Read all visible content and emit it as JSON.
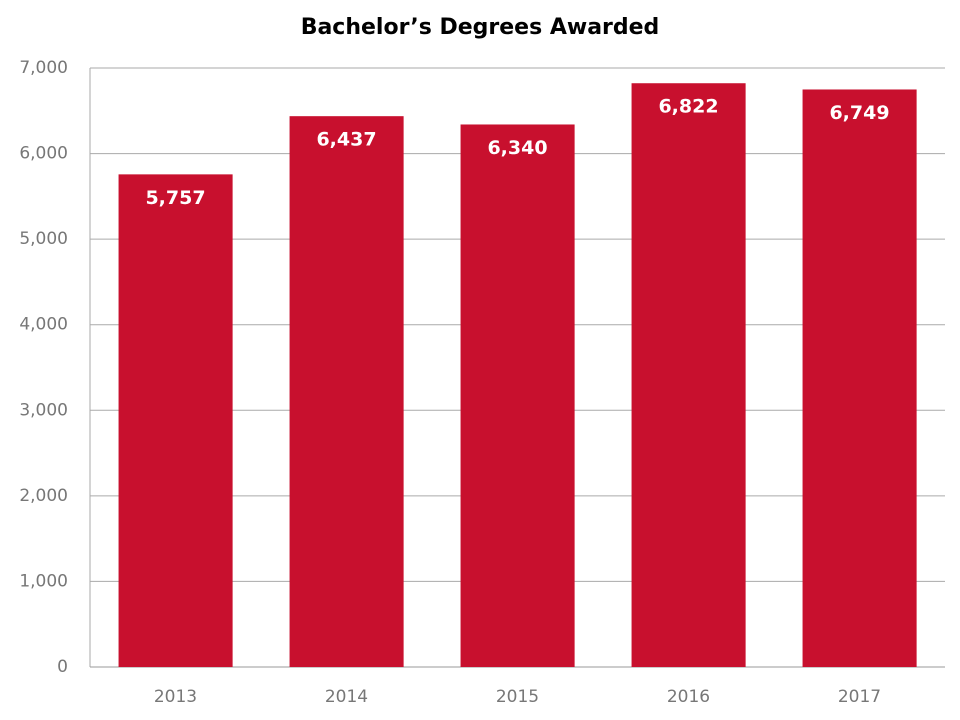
{
  "chart_data": {
    "type": "bar",
    "title": "Bachelor’s Degrees Awarded",
    "categories": [
      "2013",
      "2014",
      "2015",
      "2016",
      "2017"
    ],
    "values": [
      5757,
      6437,
      6340,
      6822,
      6749
    ],
    "value_labels": [
      "5,757",
      "6,437",
      "6,340",
      "6,822",
      "6,749"
    ],
    "color": "#c8102e",
    "ylim": [
      0,
      7000
    ],
    "yticks": [
      0,
      {
        "value": 1000,
        "label": "1,000"
      },
      {
        "value": 2000,
        "label": "2,000"
      },
      {
        "value": 3000,
        "label": "3,000"
      },
      {
        "value": 4000,
        "label": "4,000"
      },
      {
        "value": 5000,
        "label": "5,000"
      },
      {
        "value": 6000,
        "label": "6,000"
      },
      {
        "value": 7000,
        "label": "7,000"
      }
    ],
    "grid": true
  }
}
